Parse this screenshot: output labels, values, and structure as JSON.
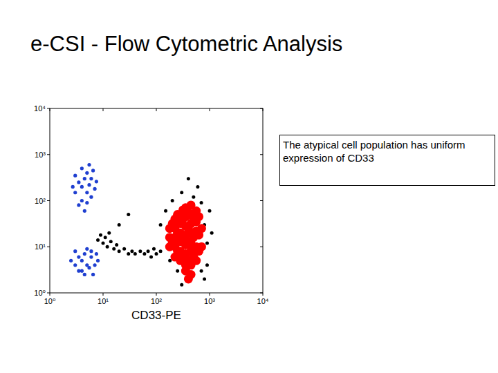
{
  "chart_data": {
    "type": "scatter",
    "title": "e-CSI - Flow Cytometric Analysis",
    "x_label": "CD33-PE",
    "annotation": "The atypical cell population has uniform expression of CD33",
    "log": true,
    "xlim": [
      1,
      10000
    ],
    "ylim": [
      1,
      10000
    ],
    "xticks": [
      {
        "value": 1,
        "label": "10⁰"
      },
      {
        "value": 10,
        "label": "10¹"
      },
      {
        "value": 100,
        "label": "10²"
      },
      {
        "value": 1000,
        "label": "10³"
      },
      {
        "value": 10000,
        "label": "10⁴"
      }
    ],
    "yticks": [
      {
        "value": 1,
        "label": "10⁰"
      },
      {
        "value": 10,
        "label": "10¹"
      },
      {
        "value": 100,
        "label": "10²"
      },
      {
        "value": 1000,
        "label": "10³"
      },
      {
        "value": 10000,
        "label": "10⁴"
      }
    ],
    "series": [
      {
        "color": "#000000",
        "marker": "dot",
        "x": [
          8,
          9,
          10,
          11,
          12,
          14,
          13,
          16,
          18,
          20,
          25,
          30,
          35,
          40,
          50,
          60,
          70,
          80,
          90,
          100,
          120,
          200,
          300,
          500,
          700,
          800,
          900,
          1000,
          150,
          250,
          700,
          900,
          600,
          400,
          120,
          180,
          800,
          1100,
          300,
          20,
          30
        ],
        "values": [
          14,
          18,
          12,
          16,
          10,
          13,
          20,
          9,
          11,
          8,
          9,
          7,
          8,
          7,
          8,
          7,
          8,
          6,
          9,
          7,
          8,
          100,
          150,
          120,
          90,
          30,
          12,
          60,
          60,
          3,
          3,
          4,
          200,
          300,
          30,
          5,
          2,
          20,
          1.5,
          30,
          50
        ]
      },
      {
        "color": "#1f3fd0",
        "marker": "dot",
        "x": [
          3,
          3.5,
          4,
          4,
          4.5,
          5,
          5,
          5.5,
          6,
          6,
          7,
          3.5,
          4.5,
          6.5,
          3,
          5,
          4,
          7.5,
          2.7,
          5.5,
          3,
          3.5,
          4,
          4,
          4.5,
          5,
          5.5,
          6,
          3,
          7,
          6.5,
          2.5,
          4.5,
          5,
          8,
          3.5,
          6,
          7.5
        ],
        "values": [
          150,
          250,
          100,
          200,
          300,
          150,
          400,
          220,
          120,
          300,
          180,
          80,
          60,
          450,
          350,
          90,
          500,
          260,
          200,
          600,
          4,
          6,
          3,
          5,
          7,
          4,
          3.5,
          6,
          8,
          4,
          2.5,
          5,
          2.5,
          9,
          5,
          3,
          8,
          7
        ]
      },
      {
        "color": "#ff0000",
        "marker": "dot",
        "x": [
          178,
          178,
          178,
          200,
          200,
          224,
          224,
          224,
          224,
          224,
          250,
          250,
          250,
          282,
          282,
          282,
          282,
          282,
          282,
          316,
          316,
          316,
          316,
          355,
          355,
          355,
          355,
          355,
          355,
          355,
          400,
          400,
          400,
          400,
          447,
          447,
          447,
          447,
          447,
          447,
          447,
          500,
          500,
          500,
          562,
          562,
          562,
          562,
          562,
          630,
          630,
          630,
          708,
          708,
          355,
          447,
          400
        ],
        "values": [
          10,
          16,
          25,
          13,
          32,
          6,
          10,
          16,
          25,
          40,
          8,
          20,
          50,
          5,
          8,
          13,
          20,
          32,
          50,
          6,
          16,
          40,
          63,
          4,
          7,
          11,
          18,
          28,
          45,
          70,
          5,
          13,
          25,
          56,
          4,
          8,
          12,
          20,
          32,
          50,
          80,
          6,
          16,
          40,
          5,
          10,
          22,
          35,
          60,
          8,
          18,
          45,
          10,
          25,
          3,
          2.5,
          2
        ]
      }
    ]
  }
}
